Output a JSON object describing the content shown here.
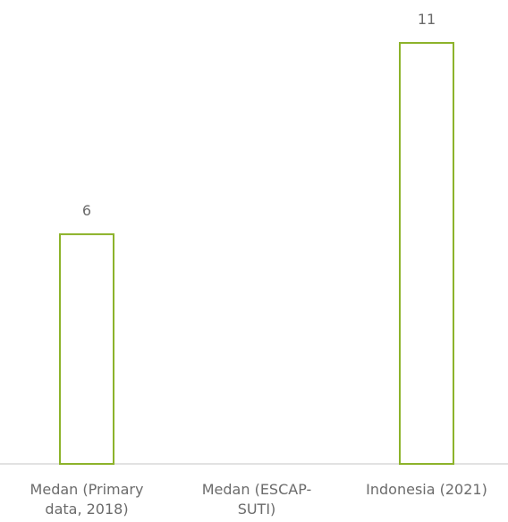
{
  "chart_data": {
    "type": "bar",
    "categories": [
      "Medan (Primary data, 2018)",
      "Medan (ESCAP-SUTI)",
      "Indonesia (2021)"
    ],
    "category_lines": [
      [
        "Medan (Primary",
        "data, 2018)"
      ],
      [
        "Medan (ESCAP-",
        "SUTI)"
      ],
      [
        "Indonesia (2021)"
      ]
    ],
    "values": [
      6,
      null,
      11
    ],
    "value_labels": [
      "6",
      "",
      "11"
    ],
    "title": "",
    "xlabel": "",
    "ylabel": "",
    "ylim": [
      0,
      11
    ],
    "grid": false,
    "colors": {
      "bar_stroke": "#8db32b",
      "bar_fill": "#ffffff",
      "axis": "#d9d9d9",
      "text": "#6b6b6b"
    }
  }
}
